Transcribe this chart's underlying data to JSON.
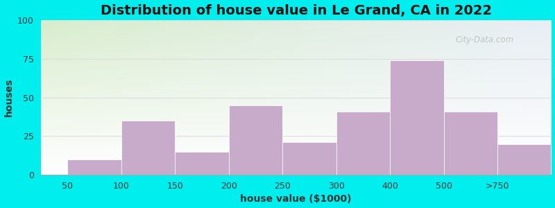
{
  "categories": [
    "50",
    "100",
    "150",
    "200",
    "250",
    "300",
    "400",
    "500",
    ">750"
  ],
  "values": [
    10,
    35,
    15,
    45,
    21,
    41,
    74,
    41,
    20
  ],
  "bar_color": "#C8AACB",
  "bar_edgecolor": "#C8AACB",
  "title": "Distribution of house value in Le Grand, CA in 2022",
  "xlabel": "house value ($1000)",
  "ylabel": "houses",
  "ylim": [
    0,
    100
  ],
  "yticks": [
    0,
    25,
    50,
    75,
    100
  ],
  "background_color": "#00EEEE",
  "plot_bg_color_topleft": "#d8edcc",
  "plot_bg_color_topright": "#e8eef5",
  "plot_bg_color_bottom": "#ffffff",
  "title_fontsize": 14,
  "axis_label_fontsize": 10,
  "tick_fontsize": 9,
  "watermark_text": "City-Data.com"
}
